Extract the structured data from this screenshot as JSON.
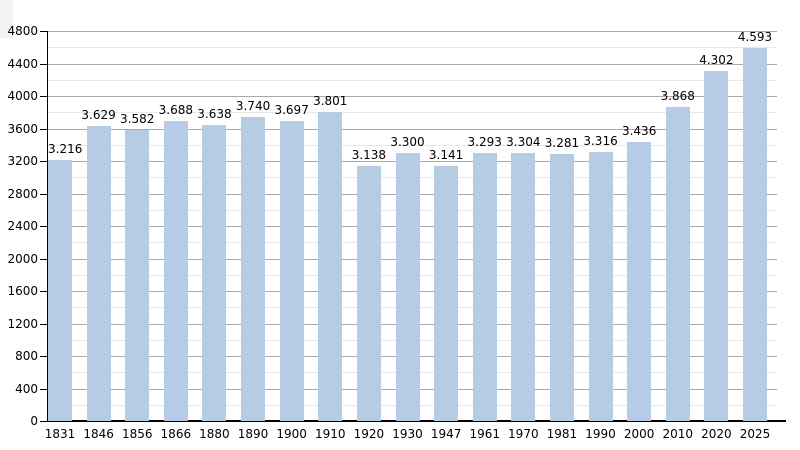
{
  "page": {
    "background_color": "#ffffff"
  },
  "chart_data": {
    "type": "bar",
    "title": "",
    "xlabel": "",
    "ylabel": "",
    "categories": [
      "1831",
      "1846",
      "1856",
      "1866",
      "1880",
      "1890",
      "1900",
      "1910",
      "1920",
      "1930",
      "1947",
      "1961",
      "1970",
      "1981",
      "1990",
      "2000",
      "2010",
      "2020",
      "2025"
    ],
    "values": [
      3216,
      3629,
      3582,
      3688,
      3638,
      3740,
      3697,
      3801,
      3138,
      3300,
      3141,
      3293,
      3304,
      3281,
      3316,
      3436,
      3868,
      4302,
      4593
    ],
    "value_labels": [
      "3.216",
      "3.629",
      "3.582",
      "3.688",
      "3.638",
      "3.740",
      "3.697",
      "3.801",
      "3.138",
      "3.300",
      "3.141",
      "3.293",
      "3.304",
      "3.281",
      "3.316",
      "3.436",
      "3.868",
      "4.302",
      "4.593"
    ],
    "ylim": [
      0,
      4800
    ],
    "y_major_step": 400,
    "y_minor_step": 200,
    "y_tick_labels": [
      "0",
      "400",
      "800",
      "1200",
      "1600",
      "2000",
      "2400",
      "2800",
      "3200",
      "3600",
      "4000",
      "4400",
      "4800"
    ],
    "grid": true,
    "legend_position": "none",
    "bar_color": "#b6cbe4",
    "major_grid_color": "#a9a9a9",
    "minor_grid_color": "#e8e8e8",
    "axis_color": "#000000",
    "label_color": "#000000"
  }
}
